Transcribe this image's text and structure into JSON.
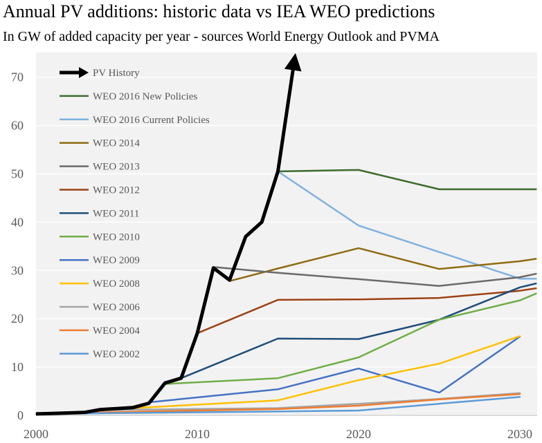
{
  "chart_data": {
    "type": "line",
    "title": "Annual PV additions: historic data vs IEA WEO predictions",
    "subtitle": "In GW of added capacity per year - sources World Energy Outlook and PVMA",
    "xlabel": "",
    "ylabel": "",
    "xlim": [
      2000,
      2031
    ],
    "ylim": [
      0,
      75
    ],
    "x_ticks": [
      2000,
      2010,
      2020,
      2030
    ],
    "y_ticks": [
      0,
      10,
      20,
      30,
      40,
      50,
      60,
      70
    ],
    "grid": true,
    "legend": "top-left",
    "series": [
      {
        "name": "PV History",
        "color": "#000000",
        "arrow": true,
        "points": [
          [
            2000,
            0.3
          ],
          [
            2001,
            0.4
          ],
          [
            2002,
            0.5
          ],
          [
            2003,
            0.6
          ],
          [
            2004,
            1.2
          ],
          [
            2005,
            1.4
          ],
          [
            2006,
            1.6
          ],
          [
            2007,
            2.5
          ],
          [
            2008,
            6.7
          ],
          [
            2009,
            7.7
          ],
          [
            2010,
            17
          ],
          [
            2011,
            30.5
          ],
          [
            2012,
            28
          ],
          [
            2013,
            37
          ],
          [
            2014,
            40
          ],
          [
            2015,
            50.5
          ],
          [
            2016,
            73
          ]
        ]
      },
      {
        "name": "WEO 2016 New Policies",
        "color": "#3D6B2C",
        "points": [
          [
            2015,
            50.5
          ],
          [
            2020,
            50.8
          ],
          [
            2025,
            46.8
          ],
          [
            2031,
            46.8
          ]
        ]
      },
      {
        "name": "WEO 2016 Current Policies",
        "color": "#7FB2E0",
        "points": [
          [
            2015,
            50.5
          ],
          [
            2020,
            39.3
          ],
          [
            2025,
            33.8
          ],
          [
            2030,
            28.3
          ],
          [
            2031,
            28.3
          ]
        ]
      },
      {
        "name": "WEO 2014",
        "color": "#8E6B10",
        "points": [
          [
            2012,
            27.8
          ],
          [
            2015,
            30.4
          ],
          [
            2020,
            34.6
          ],
          [
            2025,
            30.3
          ],
          [
            2030,
            31.9
          ],
          [
            2031,
            32.4
          ]
        ]
      },
      {
        "name": "WEO 2013",
        "color": "#6A6A6A",
        "points": [
          [
            2011,
            30.7
          ],
          [
            2015,
            29.5
          ],
          [
            2020,
            28.2
          ],
          [
            2025,
            26.8
          ],
          [
            2030,
            28.6
          ],
          [
            2031,
            29.3
          ]
        ]
      },
      {
        "name": "WEO 2012",
        "color": "#9C4114",
        "points": [
          [
            2010,
            17
          ],
          [
            2015,
            23.9
          ],
          [
            2020,
            24.0
          ],
          [
            2025,
            24.3
          ],
          [
            2030,
            25.8
          ],
          [
            2031,
            26.3
          ]
        ]
      },
      {
        "name": "WEO 2011",
        "color": "#1F4E79",
        "points": [
          [
            2009,
            7.7
          ],
          [
            2015,
            15.9
          ],
          [
            2020,
            15.8
          ],
          [
            2025,
            19.8
          ],
          [
            2030,
            26.5
          ],
          [
            2031,
            27.3
          ]
        ]
      },
      {
        "name": "WEO 2010",
        "color": "#70AD47",
        "points": [
          [
            2008,
            6.5
          ],
          [
            2015,
            7.7
          ],
          [
            2020,
            12.0
          ],
          [
            2025,
            19.8
          ],
          [
            2030,
            23.8
          ],
          [
            2031,
            25.2
          ]
        ]
      },
      {
        "name": "WEO 2009",
        "color": "#4472C4",
        "points": [
          [
            2007,
            2.7
          ],
          [
            2015,
            5.4
          ],
          [
            2020,
            9.7
          ],
          [
            2025,
            4.7
          ],
          [
            2030,
            16.3
          ]
        ]
      },
      {
        "name": "WEO 2008",
        "color": "#FFC000",
        "points": [
          [
            2006,
            1.5
          ],
          [
            2015,
            3.1
          ],
          [
            2020,
            7.3
          ],
          [
            2025,
            10.7
          ],
          [
            2030,
            16.4
          ]
        ]
      },
      {
        "name": "WEO 2006",
        "color": "#A5A5A5",
        "points": [
          [
            2004,
            1.1
          ],
          [
            2015,
            1.5
          ],
          [
            2020,
            2.4
          ],
          [
            2025,
            3.4
          ],
          [
            2030,
            4.6
          ]
        ]
      },
      {
        "name": "WEO 2004",
        "color": "#ED7D31",
        "points": [
          [
            2002,
            0.5
          ],
          [
            2015,
            1.3
          ],
          [
            2020,
            2.0
          ],
          [
            2025,
            3.3
          ],
          [
            2030,
            4.4
          ]
        ]
      },
      {
        "name": "WEO 2002",
        "color": "#5B9BD5",
        "points": [
          [
            2000,
            0.3
          ],
          [
            2015,
            0.8
          ],
          [
            2020,
            1.0
          ],
          [
            2025,
            2.4
          ],
          [
            2030,
            3.8
          ]
        ]
      }
    ]
  }
}
